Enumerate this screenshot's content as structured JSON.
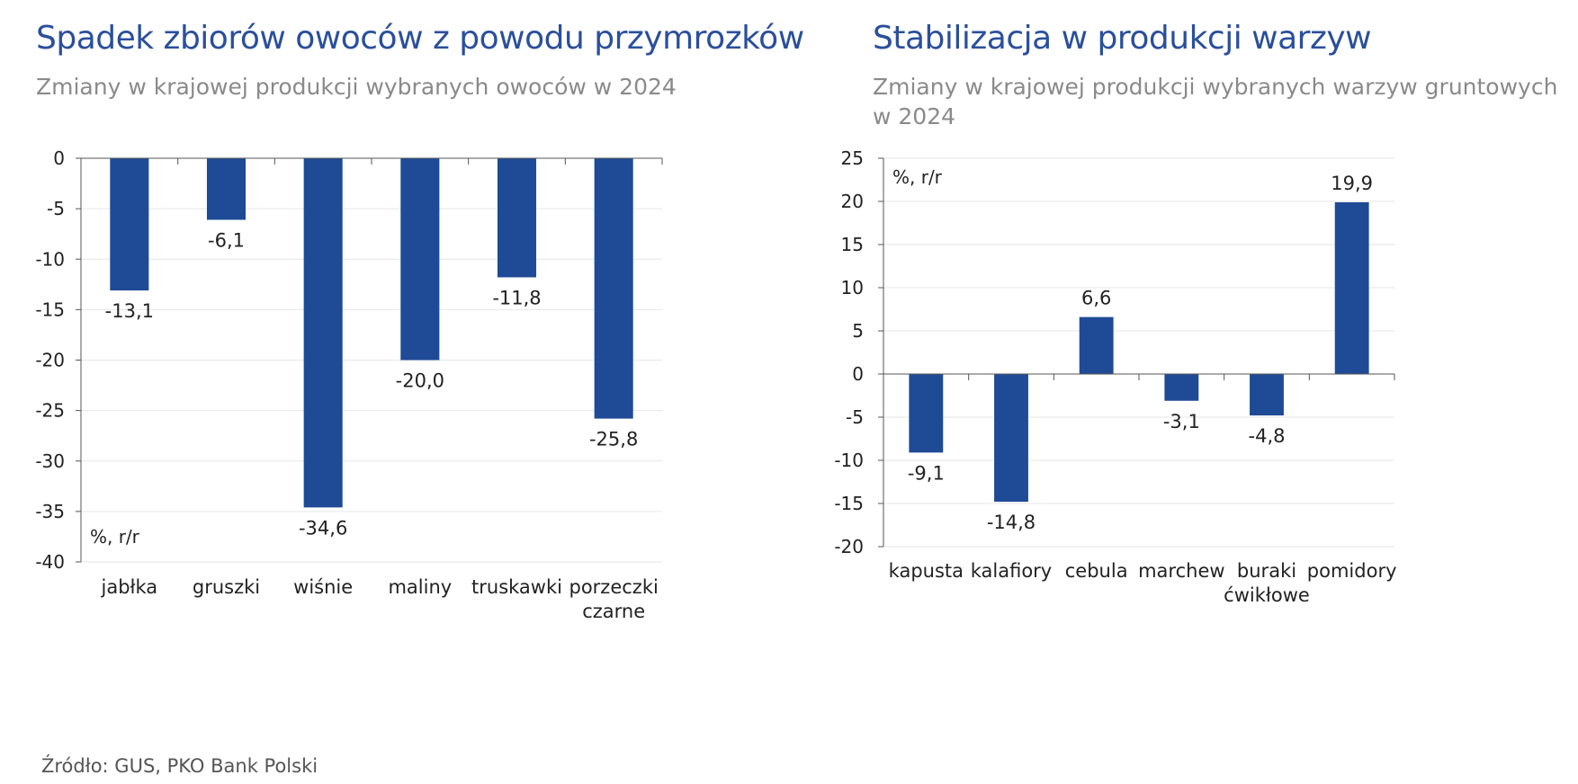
{
  "source": "Źródło: GUS, PKO Bank Polski",
  "colors": {
    "bar": "#1f4a96",
    "title": "#2a4f9c",
    "subtitle": "#8a8a8a",
    "grid": "#e6e6e6"
  },
  "chart_data": [
    {
      "type": "bar",
      "title": "Spadek zbiorów owoców z powodu przymrozków",
      "subtitle": "Zmiany w krajowej produkcji wybranych owoców w 2024",
      "unit_label": "%, r/r",
      "ylim": [
        -40,
        0
      ],
      "yticks": [
        0,
        -5,
        -10,
        -15,
        -20,
        -25,
        -30,
        -35,
        -40
      ],
      "categories": [
        "jabłka",
        "gruszki",
        "wiśnie",
        "maliny",
        "truskawki",
        "porzeczki czarne"
      ],
      "values": [
        -13.1,
        -6.1,
        -34.6,
        -20.0,
        -11.8,
        -25.8
      ],
      "value_labels": [
        "-13,1",
        "-6,1",
        "-34,6",
        "-20,0",
        "-11,8",
        "-25,8"
      ],
      "grid": true
    },
    {
      "type": "bar",
      "title": "Stabilizacja w produkcji warzyw",
      "subtitle": "Zmiany w krajowej produkcji wybranych  warzyw gruntowych w 2024",
      "unit_label": "%, r/r",
      "ylim": [
        -20,
        25
      ],
      "yticks": [
        25,
        20,
        15,
        10,
        5,
        0,
        -5,
        -10,
        -15,
        -20
      ],
      "categories": [
        "kapusta",
        "kalafiory",
        "cebula",
        "marchew",
        "buraki ćwikłowe",
        "pomidory"
      ],
      "values": [
        -9.1,
        -14.8,
        6.6,
        -3.1,
        -4.8,
        19.9
      ],
      "value_labels": [
        "-9,1",
        "-14,8",
        "6,6",
        "-3,1",
        "-4,8",
        "19,9"
      ],
      "grid": true
    }
  ]
}
